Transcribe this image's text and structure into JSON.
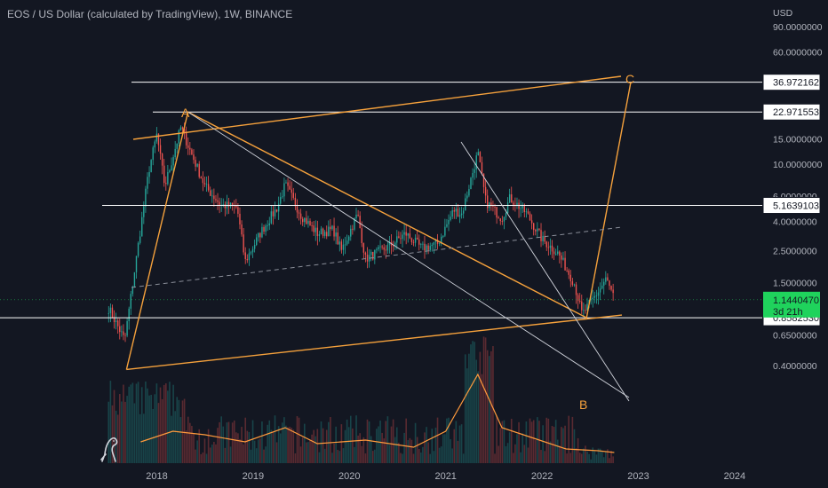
{
  "header": {
    "title": "EOS / US Dollar (calculated by TradingView), 1W, BINANCE"
  },
  "price_axis": {
    "unit": "USD",
    "ticks": [
      {
        "label": "90.0000000",
        "value": 90
      },
      {
        "label": "60.0000000",
        "value": 60
      },
      {
        "label": "15.0000000",
        "value": 15
      },
      {
        "label": "10.0000000",
        "value": 10
      },
      {
        "label": "6.0000000",
        "value": 6
      },
      {
        "label": "4.0000000",
        "value": 4
      },
      {
        "label": "2.5000000",
        "value": 2.5
      },
      {
        "label": "1.5000000",
        "value": 1.5
      },
      {
        "label": "0.6500000",
        "value": 0.65
      },
      {
        "label": "0.4000000",
        "value": 0.4
      }
    ]
  },
  "levels": [
    {
      "label": "36.9721623",
      "value": 36.9721623
    },
    {
      "label": "22.9715538",
      "value": 22.9715538
    },
    {
      "label": "5.1639103",
      "value": 5.1639103
    },
    {
      "label": "0.8582530",
      "value": 0.858253
    }
  ],
  "current_price": {
    "label": "1.1440470",
    "countdown": "3d 21h",
    "value": 1.144047,
    "color": "#1fd35c"
  },
  "x_axis": {
    "ticks": [
      "2018",
      "2019",
      "2020",
      "2021",
      "2022",
      "2023",
      "2024"
    ]
  },
  "annotations": {
    "a": "A",
    "b": "B",
    "c": "C"
  },
  "colors": {
    "up": "#26a69a",
    "down": "#ef5350",
    "wave": "#f5a13c",
    "level": "#ffffff",
    "background": "#131722"
  },
  "chart_data": {
    "type": "candlestick",
    "title": "EOS / US Dollar (calculated by TradingView), 1W, BINANCE",
    "yscale": "log",
    "ylim": [
      0.3,
      120
    ],
    "xlim": [
      "2017-06",
      "2024-06"
    ],
    "anchors": [
      {
        "date": "2017-07",
        "price": 1.0
      },
      {
        "date": "2017-09",
        "price": 0.6
      },
      {
        "date": "2017-12",
        "price": 9
      },
      {
        "date": "2018-01",
        "price": 16
      },
      {
        "date": "2018-02",
        "price": 7
      },
      {
        "date": "2018-04",
        "price": 18
      },
      {
        "date": "2018-05",
        "price": 13
      },
      {
        "date": "2018-07",
        "price": 7
      },
      {
        "date": "2018-09",
        "price": 5.2
      },
      {
        "date": "2018-11",
        "price": 5
      },
      {
        "date": "2018-12",
        "price": 2.1
      },
      {
        "date": "2019-02",
        "price": 3.4
      },
      {
        "date": "2019-04",
        "price": 5
      },
      {
        "date": "2019-05",
        "price": 7.2
      },
      {
        "date": "2019-07",
        "price": 4.4
      },
      {
        "date": "2019-09",
        "price": 3.3
      },
      {
        "date": "2019-11",
        "price": 3.5
      },
      {
        "date": "2019-12",
        "price": 2.5
      },
      {
        "date": "2020-02",
        "price": 4.5
      },
      {
        "date": "2020-03",
        "price": 2.2
      },
      {
        "date": "2020-06",
        "price": 2.7
      },
      {
        "date": "2020-08",
        "price": 3.3
      },
      {
        "date": "2020-10",
        "price": 2.6
      },
      {
        "date": "2020-12",
        "price": 2.8
      },
      {
        "date": "2021-02",
        "price": 4.8
      },
      {
        "date": "2021-03",
        "price": 4.5
      },
      {
        "date": "2021-05",
        "price": 12
      },
      {
        "date": "2021-06",
        "price": 5.5
      },
      {
        "date": "2021-08",
        "price": 4.2
      },
      {
        "date": "2021-09",
        "price": 5.8
      },
      {
        "date": "2021-11",
        "price": 4.6
      },
      {
        "date": "2022-01",
        "price": 3
      },
      {
        "date": "2022-03",
        "price": 2.4
      },
      {
        "date": "2022-05",
        "price": 1.5
      },
      {
        "date": "2022-06",
        "price": 0.9
      },
      {
        "date": "2022-08",
        "price": 1.3
      },
      {
        "date": "2022-09",
        "price": 1.6
      },
      {
        "date": "2022-10",
        "price": 1.144
      }
    ],
    "volume_ma": [
      {
        "date": "2017-11",
        "value": 0.12
      },
      {
        "date": "2018-03",
        "value": 0.18
      },
      {
        "date": "2018-07",
        "value": 0.16
      },
      {
        "date": "2018-12",
        "value": 0.12
      },
      {
        "date": "2019-05",
        "value": 0.2
      },
      {
        "date": "2019-09",
        "value": 0.11
      },
      {
        "date": "2020-03",
        "value": 0.13
      },
      {
        "date": "2020-09",
        "value": 0.09
      },
      {
        "date": "2021-01",
        "value": 0.18
      },
      {
        "date": "2021-05",
        "value": 0.5
      },
      {
        "date": "2021-08",
        "value": 0.2
      },
      {
        "date": "2021-12",
        "value": 0.14
      },
      {
        "date": "2022-04",
        "value": 0.08
      },
      {
        "date": "2022-08",
        "value": 0.07
      },
      {
        "date": "2022-10",
        "value": 0.06
      }
    ]
  }
}
